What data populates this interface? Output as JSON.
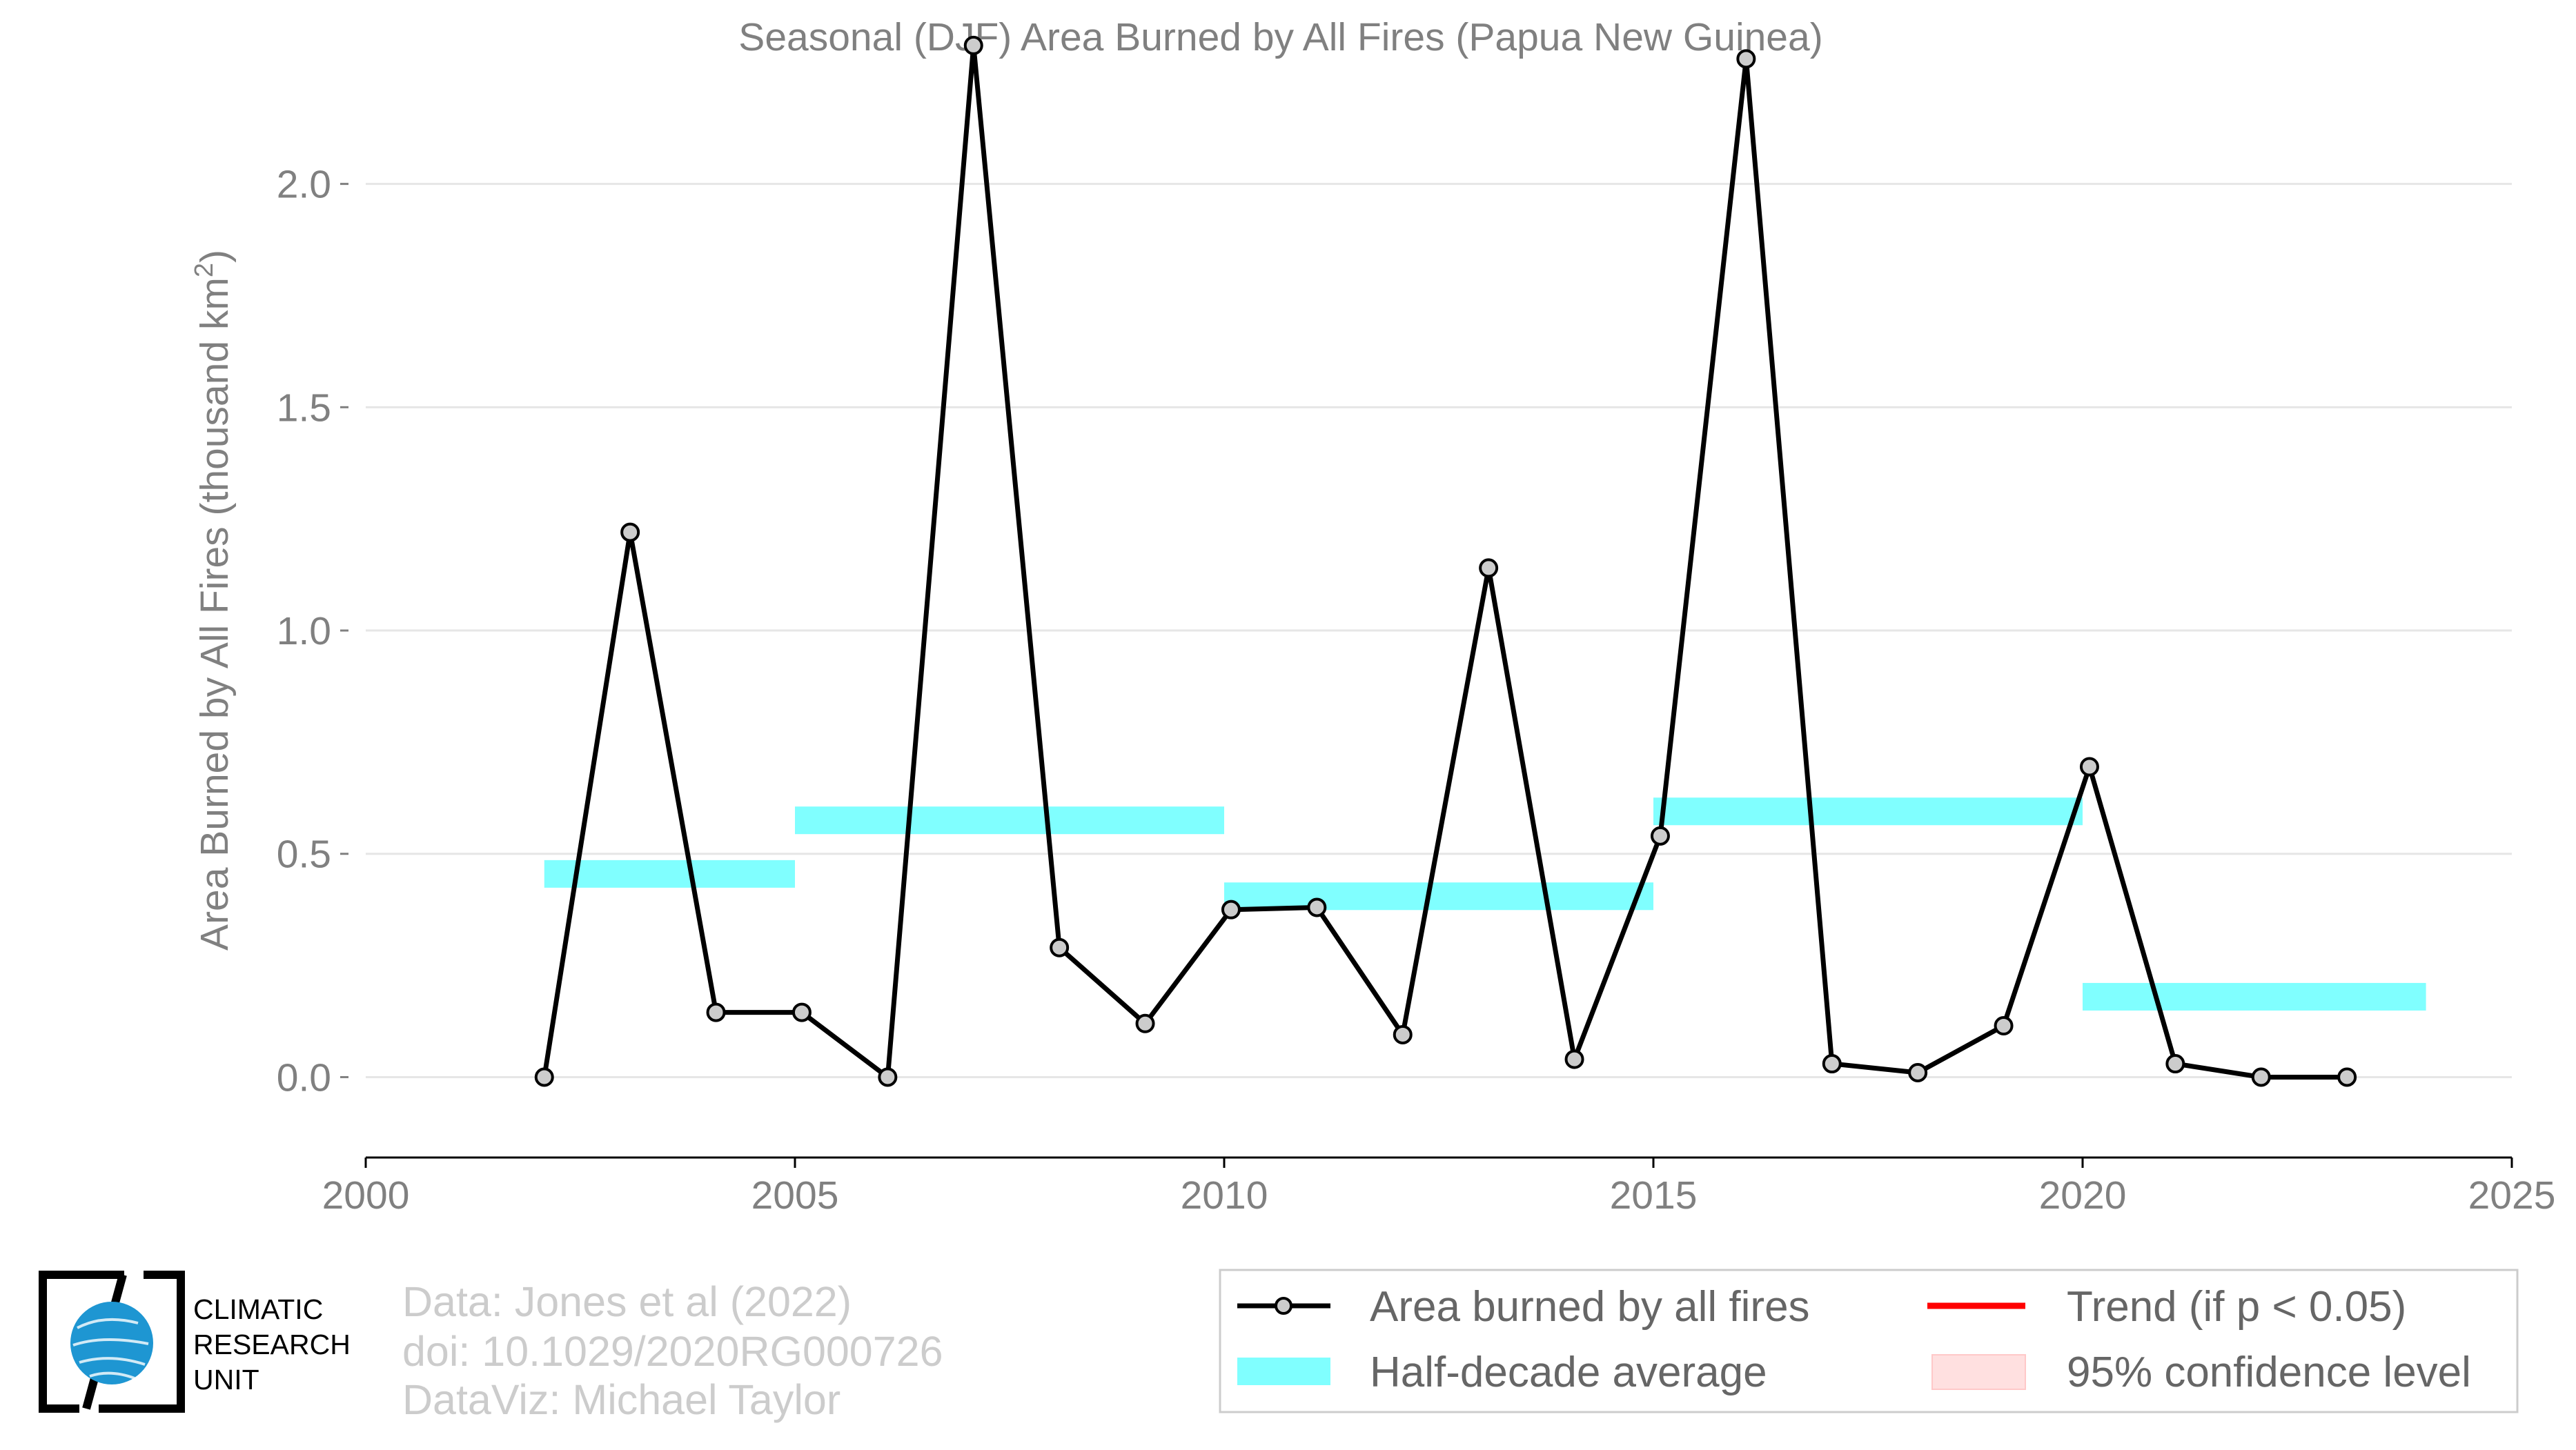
{
  "chart_data": {
    "type": "line",
    "title": "Seasonal (DJF) Area Burned by All Fires (Papua New Guinea)",
    "xlabel": "",
    "ylabel": "Area Burned by All Fires (thousand km",
    "ylabel_superscript": "2",
    "ylabel_close": ")",
    "xlim": [
      2000,
      2025
    ],
    "ylim": [
      -0.18,
      2.35
    ],
    "x_ticks": [
      2000,
      2005,
      2010,
      2015,
      2020,
      2025
    ],
    "x_tick_labels": [
      "2000",
      "2005",
      "2010",
      "2015",
      "2020",
      "2025"
    ],
    "y_ticks": [
      0.0,
      0.5,
      1.0,
      1.5,
      2.0
    ],
    "y_tick_labels": [
      "0.0",
      "0.5",
      "1.0",
      "1.5",
      "2.0"
    ],
    "grid": "horizontal",
    "series": [
      {
        "name": "Area burned by all fires",
        "color": "#000000",
        "marker_fill": "#cccccc",
        "x": [
          2002.08,
          2003.08,
          2004.08,
          2005.08,
          2006.08,
          2007.08,
          2008.08,
          2009.08,
          2010.08,
          2011.08,
          2012.08,
          2013.08,
          2014.08,
          2015.08,
          2016.08,
          2017.08,
          2018.08,
          2019.08,
          2020.08,
          2021.08,
          2022.08,
          2023.08
        ],
        "y": [
          0.0,
          1.22,
          0.145,
          0.145,
          0.0,
          2.31,
          0.29,
          0.12,
          0.375,
          0.38,
          0.095,
          1.14,
          0.04,
          0.54,
          2.28,
          0.03,
          0.01,
          0.115,
          0.695,
          0.03,
          0.0,
          0.0
        ]
      }
    ],
    "half_decade_averages": {
      "name": "Half-decade average",
      "color": "#80ffff",
      "segments": [
        {
          "x_start": 2002.08,
          "x_end": 2005.0,
          "value": 0.455
        },
        {
          "x_start": 2005.0,
          "x_end": 2010.0,
          "value": 0.575
        },
        {
          "x_start": 2010.0,
          "x_end": 2015.0,
          "value": 0.405
        },
        {
          "x_start": 2015.0,
          "x_end": 2020.0,
          "value": 0.595
        },
        {
          "x_start": 2020.0,
          "x_end": 2024.0,
          "value": 0.18
        }
      ]
    },
    "legend": {
      "placement": "bottom-right",
      "entries": [
        {
          "label": "Area burned by all fires",
          "kind": "line-marker",
          "color": "#000000"
        },
        {
          "label": "Trend (if p < 0.05)",
          "kind": "line",
          "color": "#ff0000"
        },
        {
          "label": "Half-decade average",
          "kind": "band",
          "color": "#80ffff"
        },
        {
          "label": "95% confidence level",
          "kind": "band",
          "color": "#ffe0e0"
        }
      ]
    }
  },
  "credits": {
    "line1": "Data: Jones et al (2022)",
    "line2": "doi: 10.1029/2020RG000726",
    "line3": "DataViz: Michael Taylor"
  },
  "logo": {
    "line1": "CLIMATIC",
    "line2": "RESEARCH",
    "line3": "UNIT",
    "globe_color": "#1e96d2"
  }
}
